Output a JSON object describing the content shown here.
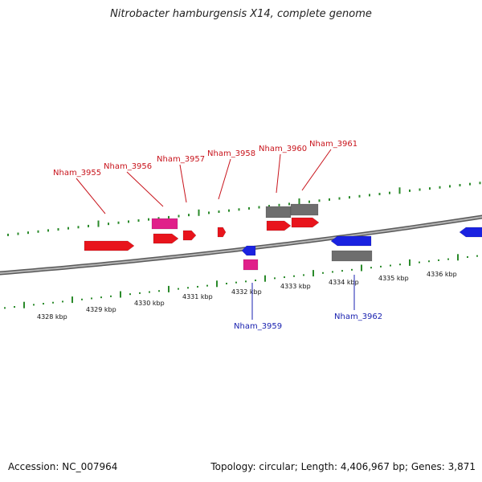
{
  "title": "Nitrobacter hamburgensis X14, complete genome",
  "footer": {
    "accession": "Accession: NC_007964",
    "summary": "Topology: circular; Length: 4,406,967 bp; Genes: 3,871"
  },
  "colors": {
    "forward_gene": "#e8141c",
    "reverse_gene": "#1a22e0",
    "rna": "#e0208a",
    "pseudo": "#6e6e6e",
    "tick": "#2a8a2a",
    "backbone": "#8a8a8a",
    "label_forward": "#c8141c",
    "label_reverse": "#1a22b0"
  },
  "scale_labels": [
    "4328 kbp",
    "4329 kbp",
    "4330 kbp",
    "4331 kbp",
    "4332 kbp",
    "4333 kbp",
    "4334 kbp",
    "4335 kbp",
    "4336 kbp"
  ],
  "gene_labels": [
    {
      "name": "Nham_3955",
      "strand": "forward"
    },
    {
      "name": "Nham_3956",
      "strand": "forward"
    },
    {
      "name": "Nham_3957",
      "strand": "forward"
    },
    {
      "name": "Nham_3958",
      "strand": "forward"
    },
    {
      "name": "Nham_3960",
      "strand": "forward"
    },
    {
      "name": "Nham_3961",
      "strand": "forward"
    },
    {
      "name": "Nham_3959",
      "strand": "reverse"
    },
    {
      "name": "Nham_3962",
      "strand": "reverse"
    }
  ]
}
